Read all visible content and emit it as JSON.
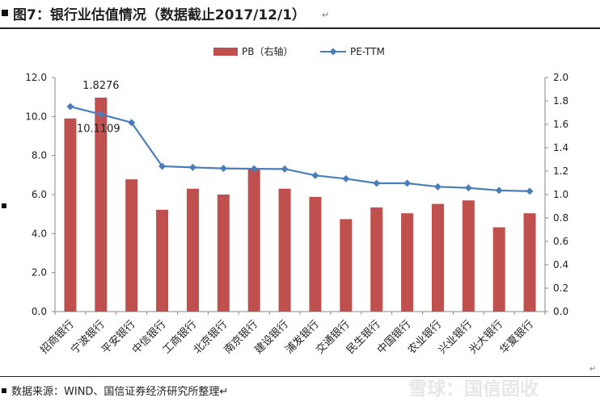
{
  "header": {
    "title": "图7：银行业估值情况（数据截止2017/12/1）",
    "mark": "↵"
  },
  "footer": {
    "source": "数据来源：WIND、国信证券经济研究所整理↵",
    "watermark": "雪球：国信固收",
    "corner_mark": "↵"
  },
  "chart_data": {
    "type": "bar",
    "categories": [
      "招商银行",
      "宁波银行",
      "平安银行",
      "中信银行",
      "工商银行",
      "北京银行",
      "南京银行",
      "建设银行",
      "浦发银行",
      "交通银行",
      "民生银行",
      "中国银行",
      "农业银行",
      "兴业银行",
      "光大银行",
      "华夏银行"
    ],
    "left_axis": {
      "min": 0,
      "max": 12,
      "step": 2,
      "ticks": [
        "0.0",
        "2.0",
        "4.0",
        "6.0",
        "8.0",
        "10.0",
        "12.0"
      ]
    },
    "right_axis": {
      "min": 0,
      "max": 2,
      "step": 0.2,
      "ticks": [
        "0.0",
        "0.2",
        "0.4",
        "0.6",
        "0.8",
        "1.0",
        "1.2",
        "1.4",
        "1.6",
        "1.8",
        "2.0"
      ]
    },
    "series": [
      {
        "name": "PB（右轴）",
        "kind": "bar",
        "axis": "right",
        "color": "#c0504d",
        "values": [
          1.65,
          1.8276,
          1.13,
          0.87,
          1.05,
          1.0,
          1.22,
          1.05,
          0.98,
          0.79,
          0.89,
          0.84,
          0.92,
          0.95,
          0.72,
          0.84
        ]
      },
      {
        "name": "PE-TTM",
        "kind": "line",
        "axis": "left",
        "color": "#4a7ebb",
        "values": [
          10.51,
          10.1109,
          9.69,
          7.45,
          7.39,
          7.34,
          7.32,
          7.31,
          6.98,
          6.81,
          6.58,
          6.58,
          6.4,
          6.34,
          6.21,
          6.17
        ]
      }
    ],
    "data_labels": [
      {
        "series": "PB（右轴）",
        "index": 1,
        "text": "1.8276"
      },
      {
        "series": "PE-TTM",
        "index": 1,
        "text": "10.1109"
      }
    ],
    "legend": "top-center",
    "grid": false
  }
}
